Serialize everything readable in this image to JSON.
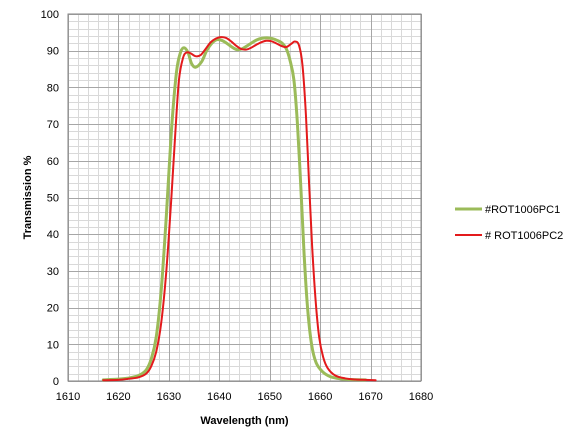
{
  "chart_data": {
    "type": "line",
    "xlabel": "Wavelength (nm)",
    "ylabel": "Transmission %",
    "xlim": [
      1610,
      1680
    ],
    "ylim": [
      0,
      100
    ],
    "x_ticks": [
      1610,
      1620,
      1630,
      1640,
      1650,
      1660,
      1670,
      1680
    ],
    "y_ticks": [
      0,
      10,
      20,
      30,
      40,
      50,
      60,
      70,
      80,
      90,
      100
    ],
    "grid": true,
    "legend_position": "right",
    "series": [
      {
        "name": "#ROT1006PC1",
        "color": "#9bbb59",
        "points": [
          [
            1617,
            0.3
          ],
          [
            1620,
            0.5
          ],
          [
            1622,
            0.8
          ],
          [
            1624,
            1.5
          ],
          [
            1625.5,
            3
          ],
          [
            1626.5,
            6
          ],
          [
            1627.5,
            12
          ],
          [
            1628.5,
            25
          ],
          [
            1629.5,
            45
          ],
          [
            1630.5,
            68
          ],
          [
            1631.5,
            84
          ],
          [
            1632.3,
            89.5
          ],
          [
            1633,
            90.8
          ],
          [
            1633.8,
            89.5
          ],
          [
            1634.5,
            86.5
          ],
          [
            1635.3,
            85.5
          ],
          [
            1636.5,
            87
          ],
          [
            1637.5,
            90
          ],
          [
            1638.5,
            92
          ],
          [
            1639.5,
            93
          ],
          [
            1640.5,
            92.8
          ],
          [
            1641.5,
            92
          ],
          [
            1642.5,
            91
          ],
          [
            1643.5,
            90.3
          ],
          [
            1644.5,
            90.5
          ],
          [
            1645.5,
            91.3
          ],
          [
            1646.5,
            92.2
          ],
          [
            1647.5,
            93
          ],
          [
            1648.5,
            93.4
          ],
          [
            1649.5,
            93.5
          ],
          [
            1650.5,
            93.3
          ],
          [
            1651.5,
            92.8
          ],
          [
            1652.5,
            92
          ],
          [
            1653.3,
            90.5
          ],
          [
            1654,
            87.5
          ],
          [
            1654.8,
            82
          ],
          [
            1655.5,
            70
          ],
          [
            1656.2,
            52
          ],
          [
            1656.8,
            35
          ],
          [
            1657.5,
            20
          ],
          [
            1658.3,
            10
          ],
          [
            1659.2,
            5
          ],
          [
            1660.5,
            2.5
          ],
          [
            1662,
            1.2
          ],
          [
            1664,
            0.6
          ],
          [
            1666,
            0.4
          ],
          [
            1669,
            0.3
          ]
        ]
      },
      {
        "name": "# ROT1006PC2",
        "color": "#e31a1c",
        "points": [
          [
            1617,
            0.2
          ],
          [
            1620,
            0.3
          ],
          [
            1622,
            0.6
          ],
          [
            1624,
            1.0
          ],
          [
            1625.5,
            2
          ],
          [
            1626.5,
            4
          ],
          [
            1627.5,
            8
          ],
          [
            1628.5,
            16
          ],
          [
            1629.5,
            30
          ],
          [
            1630.5,
            50
          ],
          [
            1631.3,
            68
          ],
          [
            1632,
            82
          ],
          [
            1632.8,
            88
          ],
          [
            1633.5,
            89.5
          ],
          [
            1634.3,
            89.3
          ],
          [
            1635.3,
            88.5
          ],
          [
            1636.3,
            88.8
          ],
          [
            1637.3,
            90.5
          ],
          [
            1638.3,
            92.3
          ],
          [
            1639.3,
            93.3
          ],
          [
            1640.3,
            93.7
          ],
          [
            1641.3,
            93.5
          ],
          [
            1642.3,
            92.6
          ],
          [
            1643.3,
            91.4
          ],
          [
            1644.3,
            90.5
          ],
          [
            1645.3,
            90.3
          ],
          [
            1646.3,
            90.8
          ],
          [
            1647.3,
            91.6
          ],
          [
            1648.3,
            92.3
          ],
          [
            1649.3,
            92.7
          ],
          [
            1650.3,
            92.6
          ],
          [
            1651.3,
            92
          ],
          [
            1652.3,
            91.3
          ],
          [
            1653.3,
            91
          ],
          [
            1654.2,
            91.8
          ],
          [
            1655,
            92.5
          ],
          [
            1655.8,
            91.5
          ],
          [
            1656.5,
            86
          ],
          [
            1657.2,
            72
          ],
          [
            1657.8,
            54
          ],
          [
            1658.4,
            37
          ],
          [
            1659.1,
            22
          ],
          [
            1659.8,
            12
          ],
          [
            1660.6,
            6.5
          ],
          [
            1661.5,
            3.5
          ],
          [
            1663,
            1.5
          ],
          [
            1665,
            0.7
          ],
          [
            1667,
            0.4
          ],
          [
            1669,
            0.3
          ],
          [
            1671,
            0.2
          ]
        ]
      }
    ]
  }
}
